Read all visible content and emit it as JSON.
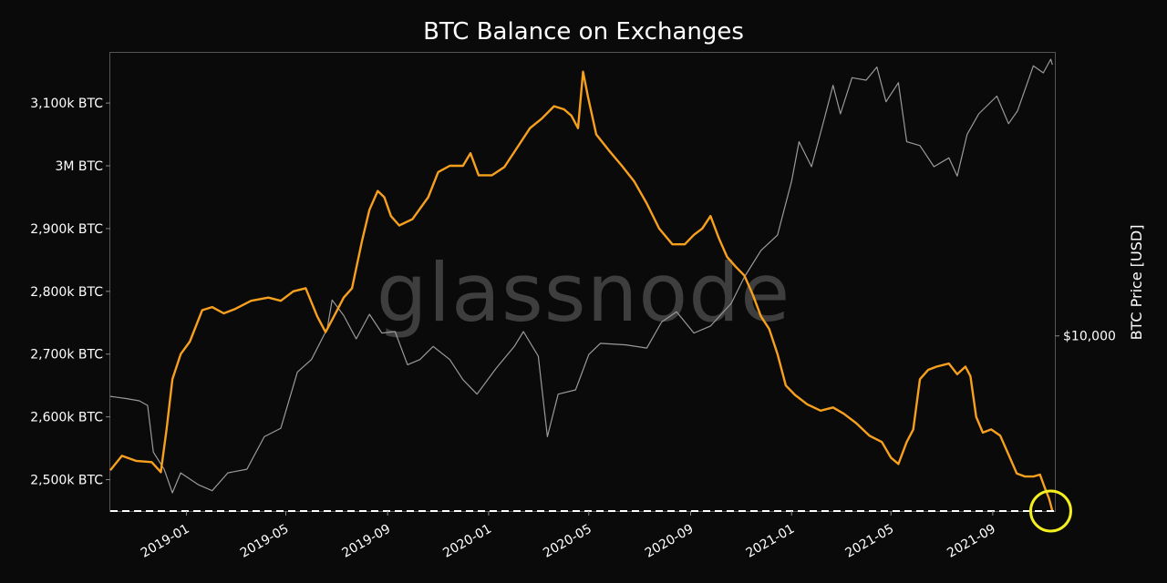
{
  "chart_data": {
    "type": "line",
    "title": "BTC Balance on Exchanges",
    "xlabel": "",
    "ylabel": "",
    "ylabel_right": "BTC Price [USD]",
    "watermark": "glassnode",
    "x_range": [
      "2018-10-01",
      "2021-11-15"
    ],
    "ylim": [
      2450,
      3180
    ],
    "y_unit": "k BTC",
    "y_ticks": [
      {
        "value": 2500,
        "label": "2,500k BTC"
      },
      {
        "value": 2600,
        "label": "2,600k BTC"
      },
      {
        "value": 2700,
        "label": "2,700k BTC"
      },
      {
        "value": 2800,
        "label": "2,800k BTC"
      },
      {
        "value": 2900,
        "label": "2,900k BTC"
      },
      {
        "value": 3000,
        "label": "3M BTC"
      },
      {
        "value": 3100,
        "label": "3,100k BTC"
      }
    ],
    "x_ticks": [
      {
        "date": "2019-01-01",
        "label": "2019-01"
      },
      {
        "date": "2019-05-01",
        "label": "2019-05"
      },
      {
        "date": "2019-09-01",
        "label": "2019-09"
      },
      {
        "date": "2020-01-01",
        "label": "2020-01"
      },
      {
        "date": "2020-05-01",
        "label": "2020-05"
      },
      {
        "date": "2020-09-01",
        "label": "2020-09"
      },
      {
        "date": "2021-01-01",
        "label": "2021-01"
      },
      {
        "date": "2021-05-01",
        "label": "2021-05"
      },
      {
        "date": "2021-09-01",
        "label": "2021-09"
      }
    ],
    "right_axis": {
      "scale": "log",
      "ylim": [
        3000,
        70000
      ],
      "ticks": [
        {
          "value": 10000,
          "label": "$10,000"
        }
      ]
    },
    "reference_line": {
      "value": 2450,
      "style": "dashed",
      "color": "#ffffff"
    },
    "highlight_circle": {
      "date": "2021-11-10",
      "value": 2450,
      "color": "#f5ef1f"
    },
    "grid": false,
    "series": [
      {
        "name": "Balance on Exchanges",
        "axis": "left",
        "color": "#f7a01e",
        "points": [
          [
            "2018-10-01",
            2515
          ],
          [
            "2018-10-15",
            2538
          ],
          [
            "2018-11-01",
            2530
          ],
          [
            "2018-11-20",
            2528
          ],
          [
            "2018-12-01",
            2512
          ],
          [
            "2018-12-08",
            2580
          ],
          [
            "2018-12-15",
            2660
          ],
          [
            "2018-12-25",
            2700
          ],
          [
            "2019-01-05",
            2720
          ],
          [
            "2019-01-20",
            2770
          ],
          [
            "2019-02-01",
            2775
          ],
          [
            "2019-02-15",
            2765
          ],
          [
            "2019-03-01",
            2772
          ],
          [
            "2019-03-20",
            2785
          ],
          [
            "2019-04-10",
            2790
          ],
          [
            "2019-04-25",
            2785
          ],
          [
            "2019-05-10",
            2800
          ],
          [
            "2019-05-25",
            2805
          ],
          [
            "2019-06-08",
            2760
          ],
          [
            "2019-06-18",
            2735
          ],
          [
            "2019-06-28",
            2760
          ],
          [
            "2019-07-10",
            2790
          ],
          [
            "2019-07-20",
            2805
          ],
          [
            "2019-08-01",
            2880
          ],
          [
            "2019-08-10",
            2930
          ],
          [
            "2019-08-20",
            2960
          ],
          [
            "2019-08-28",
            2950
          ],
          [
            "2019-09-05",
            2920
          ],
          [
            "2019-09-15",
            2905
          ],
          [
            "2019-10-01",
            2915
          ],
          [
            "2019-10-20",
            2950
          ],
          [
            "2019-11-01",
            2990
          ],
          [
            "2019-11-15",
            3000
          ],
          [
            "2019-12-01",
            3000
          ],
          [
            "2019-12-10",
            3020
          ],
          [
            "2019-12-20",
            2985
          ],
          [
            "2020-01-05",
            2985
          ],
          [
            "2020-01-20",
            2998
          ],
          [
            "2020-02-05",
            3030
          ],
          [
            "2020-02-20",
            3060
          ],
          [
            "2020-03-05",
            3075
          ],
          [
            "2020-03-20",
            3095
          ],
          [
            "2020-04-01",
            3090
          ],
          [
            "2020-04-10",
            3080
          ],
          [
            "2020-04-18",
            3060
          ],
          [
            "2020-04-24",
            3150
          ],
          [
            "2020-04-30",
            3110
          ],
          [
            "2020-05-10",
            3050
          ],
          [
            "2020-05-25",
            3025
          ],
          [
            "2020-06-10",
            3000
          ],
          [
            "2020-06-25",
            2975
          ],
          [
            "2020-07-10",
            2940
          ],
          [
            "2020-07-25",
            2900
          ],
          [
            "2020-08-10",
            2875
          ],
          [
            "2020-08-25",
            2875
          ],
          [
            "2020-09-05",
            2890
          ],
          [
            "2020-09-15",
            2900
          ],
          [
            "2020-09-25",
            2920
          ],
          [
            "2020-10-05",
            2885
          ],
          [
            "2020-10-15",
            2855
          ],
          [
            "2020-10-25",
            2840
          ],
          [
            "2020-11-05",
            2825
          ],
          [
            "2020-11-15",
            2795
          ],
          [
            "2020-11-25",
            2760
          ],
          [
            "2020-12-05",
            2740
          ],
          [
            "2020-12-15",
            2700
          ],
          [
            "2020-12-25",
            2650
          ],
          [
            "2021-01-05",
            2635
          ],
          [
            "2021-01-20",
            2620
          ],
          [
            "2021-02-05",
            2610
          ],
          [
            "2021-02-20",
            2615
          ],
          [
            "2021-03-05",
            2605
          ],
          [
            "2021-03-20",
            2590
          ],
          [
            "2021-04-05",
            2570
          ],
          [
            "2021-04-20",
            2560
          ],
          [
            "2021-05-01",
            2535
          ],
          [
            "2021-05-10",
            2525
          ],
          [
            "2021-05-20",
            2560
          ],
          [
            "2021-05-28",
            2580
          ],
          [
            "2021-06-05",
            2660
          ],
          [
            "2021-06-15",
            2675
          ],
          [
            "2021-06-25",
            2680
          ],
          [
            "2021-07-10",
            2685
          ],
          [
            "2021-07-20",
            2668
          ],
          [
            "2021-07-30",
            2680
          ],
          [
            "2021-08-05",
            2665
          ],
          [
            "2021-08-12",
            2600
          ],
          [
            "2021-08-20",
            2575
          ],
          [
            "2021-08-30",
            2580
          ],
          [
            "2021-09-10",
            2570
          ],
          [
            "2021-09-20",
            2540
          ],
          [
            "2021-09-30",
            2510
          ],
          [
            "2021-10-10",
            2505
          ],
          [
            "2021-10-20",
            2505
          ],
          [
            "2021-10-28",
            2508
          ],
          [
            "2021-11-02",
            2490
          ],
          [
            "2021-11-08",
            2470
          ],
          [
            "2021-11-12",
            2450
          ]
        ]
      },
      {
        "name": "BTC Price",
        "axis": "right",
        "color": "#9a9a9a",
        "points": [
          [
            "2018-10-01",
            6600
          ],
          [
            "2018-10-20",
            6500
          ],
          [
            "2018-11-05",
            6400
          ],
          [
            "2018-11-15",
            6200
          ],
          [
            "2018-11-22",
            4500
          ],
          [
            "2018-12-05",
            4000
          ],
          [
            "2018-12-15",
            3400
          ],
          [
            "2018-12-25",
            3900
          ],
          [
            "2019-01-15",
            3600
          ],
          [
            "2019-02-01",
            3450
          ],
          [
            "2019-02-20",
            3900
          ],
          [
            "2019-03-15",
            4000
          ],
          [
            "2019-04-05",
            5000
          ],
          [
            "2019-04-25",
            5300
          ],
          [
            "2019-05-15",
            7800
          ],
          [
            "2019-06-01",
            8500
          ],
          [
            "2019-06-20",
            10500
          ],
          [
            "2019-06-26",
            12800
          ],
          [
            "2019-07-10",
            11500
          ],
          [
            "2019-07-25",
            9800
          ],
          [
            "2019-08-10",
            11600
          ],
          [
            "2019-08-25",
            10200
          ],
          [
            "2019-09-10",
            10300
          ],
          [
            "2019-09-25",
            8200
          ],
          [
            "2019-10-10",
            8500
          ],
          [
            "2019-10-26",
            9300
          ],
          [
            "2019-11-15",
            8500
          ],
          [
            "2019-12-01",
            7400
          ],
          [
            "2019-12-18",
            6700
          ],
          [
            "2020-01-10",
            8000
          ],
          [
            "2020-02-01",
            9300
          ],
          [
            "2020-02-12",
            10300
          ],
          [
            "2020-03-01",
            8700
          ],
          [
            "2020-03-12",
            5000
          ],
          [
            "2020-03-25",
            6700
          ],
          [
            "2020-04-15",
            6900
          ],
          [
            "2020-05-01",
            8800
          ],
          [
            "2020-05-15",
            9500
          ],
          [
            "2020-06-15",
            9400
          ],
          [
            "2020-07-10",
            9200
          ],
          [
            "2020-07-28",
            11000
          ],
          [
            "2020-08-15",
            11800
          ],
          [
            "2020-09-05",
            10200
          ],
          [
            "2020-09-25",
            10700
          ],
          [
            "2020-10-20",
            12500
          ],
          [
            "2020-11-05",
            15000
          ],
          [
            "2020-11-25",
            18000
          ],
          [
            "2020-12-15",
            20000
          ],
          [
            "2021-01-01",
            29000
          ],
          [
            "2021-01-10",
            38000
          ],
          [
            "2021-01-25",
            32000
          ],
          [
            "2021-02-10",
            45000
          ],
          [
            "2021-02-20",
            56000
          ],
          [
            "2021-03-01",
            46000
          ],
          [
            "2021-03-15",
            59000
          ],
          [
            "2021-04-01",
            58000
          ],
          [
            "2021-04-14",
            63500
          ],
          [
            "2021-04-25",
            50000
          ],
          [
            "2021-05-10",
            57000
          ],
          [
            "2021-05-20",
            38000
          ],
          [
            "2021-06-05",
            37000
          ],
          [
            "2021-06-22",
            32000
          ],
          [
            "2021-07-10",
            34000
          ],
          [
            "2021-07-20",
            30000
          ],
          [
            "2021-08-01",
            40000
          ],
          [
            "2021-08-15",
            46000
          ],
          [
            "2021-09-06",
            52000
          ],
          [
            "2021-09-20",
            43000
          ],
          [
            "2021-10-01",
            47000
          ],
          [
            "2021-10-20",
            64000
          ],
          [
            "2021-11-01",
            61000
          ],
          [
            "2021-11-10",
            67000
          ],
          [
            "2021-11-12",
            64500
          ]
        ]
      }
    ]
  }
}
